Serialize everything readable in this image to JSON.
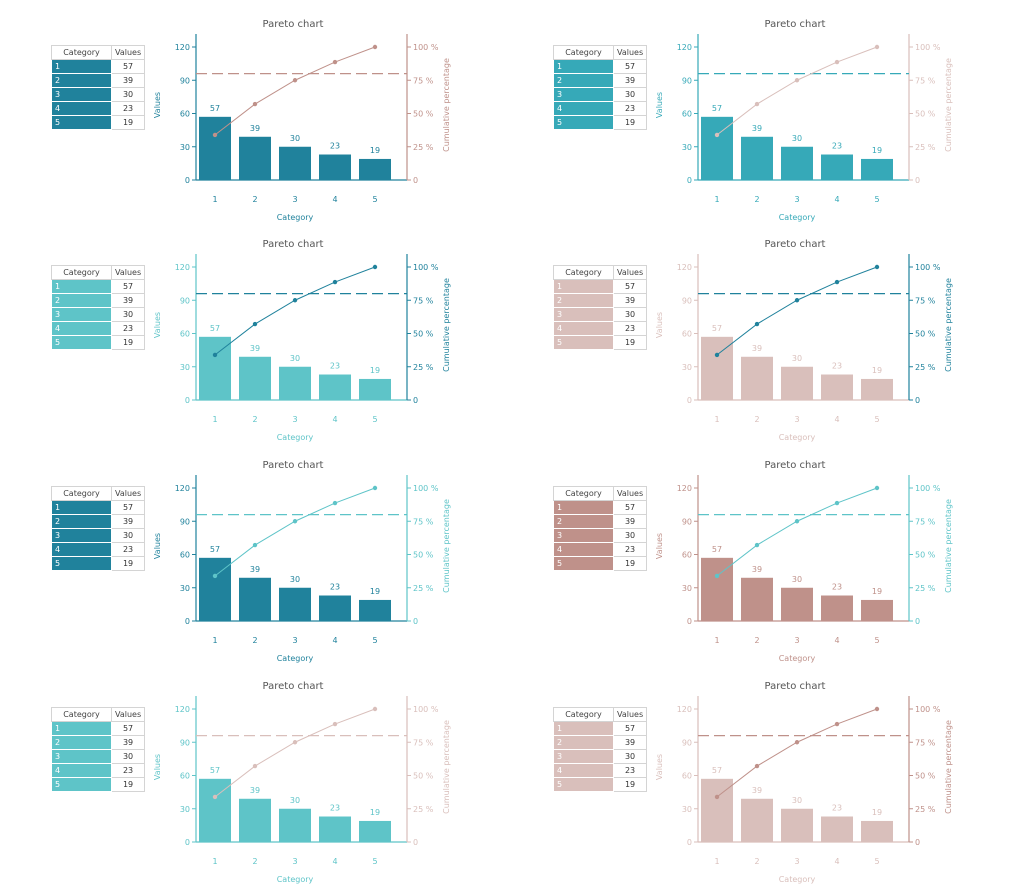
{
  "palette": {
    "dark_teal": "#20829c",
    "teal": "#36a9b8",
    "light_teal": "#5ec4c8",
    "mauve": "#bf918a",
    "light_pink": "#d9bfbb",
    "title_color": "#555555"
  },
  "table_headers": [
    "Category",
    "Values"
  ],
  "chart_data": [
    {
      "type": "bar",
      "title": "Pareto chart",
      "xlabel": "Category",
      "ylabel": "Values",
      "y2label": "Cumulative percentage",
      "categories": [
        "1",
        "2",
        "3",
        "4",
        "5"
      ],
      "values": [
        57,
        39,
        30,
        23,
        19
      ],
      "cumulative_percent": [
        33.9,
        57.1,
        75.0,
        88.7,
        100.0
      ],
      "threshold_percent": 80,
      "ylim": [
        0,
        120
      ],
      "y2lim": [
        0,
        100
      ],
      "yticks": [
        "0",
        "30",
        "60",
        "90",
        "120"
      ],
      "y2ticks": [
        "0",
        "25 %",
        "50 %",
        "75 %",
        "100 %"
      ],
      "colors": {
        "bars": "#20829c",
        "left_axis": "#20829c",
        "line": "#bf918a",
        "right_axis": "#bf918a"
      }
    },
    {
      "type": "bar",
      "title": "Pareto chart",
      "xlabel": "Category",
      "ylabel": "Values",
      "y2label": "Cumulative percentage",
      "categories": [
        "1",
        "2",
        "3",
        "4",
        "5"
      ],
      "values": [
        57,
        39,
        30,
        23,
        19
      ],
      "cumulative_percent": [
        33.9,
        57.1,
        75.0,
        88.7,
        100.0
      ],
      "threshold_percent": 80,
      "ylim": [
        0,
        120
      ],
      "y2lim": [
        0,
        100
      ],
      "yticks": [
        "0",
        "30",
        "60",
        "90",
        "120"
      ],
      "y2ticks": [
        "0",
        "25 %",
        "50 %",
        "75 %",
        "100 %"
      ],
      "colors": {
        "bars": "#36a9b8",
        "left_axis": "#36a9b8",
        "line": "#d9bfbb",
        "right_axis": "#d9bfbb",
        "threshold": "#36a9b8"
      }
    },
    {
      "type": "bar",
      "title": "Pareto chart",
      "xlabel": "Category",
      "ylabel": "Values",
      "y2label": "Cumulative percentage",
      "categories": [
        "1",
        "2",
        "3",
        "4",
        "5"
      ],
      "values": [
        57,
        39,
        30,
        23,
        19
      ],
      "cumulative_percent": [
        33.9,
        57.1,
        75.0,
        88.7,
        100.0
      ],
      "threshold_percent": 80,
      "ylim": [
        0,
        120
      ],
      "y2lim": [
        0,
        100
      ],
      "yticks": [
        "0",
        "30",
        "60",
        "90",
        "120"
      ],
      "y2ticks": [
        "0",
        "25 %",
        "50 %",
        "75 %",
        "100 %"
      ],
      "colors": {
        "bars": "#5ec4c8",
        "left_axis": "#5ec4c8",
        "line": "#20829c",
        "right_axis": "#20829c"
      }
    },
    {
      "type": "bar",
      "title": "Pareto chart",
      "xlabel": "Category",
      "ylabel": "Values",
      "y2label": "Cumulative percentage",
      "categories": [
        "1",
        "2",
        "3",
        "4",
        "5"
      ],
      "values": [
        57,
        39,
        30,
        23,
        19
      ],
      "cumulative_percent": [
        33.9,
        57.1,
        75.0,
        88.7,
        100.0
      ],
      "threshold_percent": 80,
      "ylim": [
        0,
        120
      ],
      "y2lim": [
        0,
        100
      ],
      "yticks": [
        "0",
        "30",
        "60",
        "90",
        "120"
      ],
      "y2ticks": [
        "0",
        "25 %",
        "50 %",
        "75 %",
        "100 %"
      ],
      "colors": {
        "bars": "#d9bfbb",
        "left_axis": "#d9bfbb",
        "line": "#20829c",
        "right_axis": "#20829c"
      }
    },
    {
      "type": "bar",
      "title": "Pareto chart",
      "xlabel": "Category",
      "ylabel": "Values",
      "y2label": "Cumulative percentage",
      "categories": [
        "1",
        "2",
        "3",
        "4",
        "5"
      ],
      "values": [
        57,
        39,
        30,
        23,
        19
      ],
      "cumulative_percent": [
        33.9,
        57.1,
        75.0,
        88.7,
        100.0
      ],
      "threshold_percent": 80,
      "ylim": [
        0,
        120
      ],
      "y2lim": [
        0,
        100
      ],
      "yticks": [
        "0",
        "30",
        "60",
        "90",
        "120"
      ],
      "y2ticks": [
        "0",
        "25 %",
        "50 %",
        "75 %",
        "100 %"
      ],
      "colors": {
        "bars": "#20829c",
        "left_axis": "#20829c",
        "line": "#5ec4c8",
        "right_axis": "#5ec4c8"
      }
    },
    {
      "type": "bar",
      "title": "Pareto chart",
      "xlabel": "Category",
      "ylabel": "Values",
      "y2label": "Cumulative percentage",
      "categories": [
        "1",
        "2",
        "3",
        "4",
        "5"
      ],
      "values": [
        57,
        39,
        30,
        23,
        19
      ],
      "cumulative_percent": [
        33.9,
        57.1,
        75.0,
        88.7,
        100.0
      ],
      "threshold_percent": 80,
      "ylim": [
        0,
        120
      ],
      "y2lim": [
        0,
        100
      ],
      "yticks": [
        "0",
        "30",
        "60",
        "90",
        "120"
      ],
      "y2ticks": [
        "0",
        "25 %",
        "50 %",
        "75 %",
        "100 %"
      ],
      "colors": {
        "bars": "#bf918a",
        "left_axis": "#bf918a",
        "line": "#5ec4c8",
        "right_axis": "#5ec4c8"
      }
    },
    {
      "type": "bar",
      "title": "Pareto chart",
      "xlabel": "Category",
      "ylabel": "Values",
      "y2label": "Cumulative percentage",
      "categories": [
        "1",
        "2",
        "3",
        "4",
        "5"
      ],
      "values": [
        57,
        39,
        30,
        23,
        19
      ],
      "cumulative_percent": [
        33.9,
        57.1,
        75.0,
        88.7,
        100.0
      ],
      "threshold_percent": 80,
      "ylim": [
        0,
        120
      ],
      "y2lim": [
        0,
        100
      ],
      "yticks": [
        "0",
        "30",
        "60",
        "90",
        "120"
      ],
      "y2ticks": [
        "0",
        "25 %",
        "50 %",
        "75 %",
        "100 %"
      ],
      "colors": {
        "bars": "#5ec4c8",
        "left_axis": "#5ec4c8",
        "line": "#d9bfbb",
        "right_axis": "#d9bfbb"
      }
    },
    {
      "type": "bar",
      "title": "Pareto chart",
      "xlabel": "Category",
      "ylabel": "Values",
      "y2label": "Cumulative percentage",
      "categories": [
        "1",
        "2",
        "3",
        "4",
        "5"
      ],
      "values": [
        57,
        39,
        30,
        23,
        19
      ],
      "cumulative_percent": [
        33.9,
        57.1,
        75.0,
        88.7,
        100.0
      ],
      "threshold_percent": 80,
      "ylim": [
        0,
        120
      ],
      "y2lim": [
        0,
        100
      ],
      "yticks": [
        "0",
        "30",
        "60",
        "90",
        "120"
      ],
      "y2ticks": [
        "0",
        "25 %",
        "50 %",
        "75 %",
        "100 %"
      ],
      "colors": {
        "bars": "#d9bfbb",
        "left_axis": "#d9bfbb",
        "line": "#bf918a",
        "right_axis": "#bf918a"
      }
    }
  ]
}
